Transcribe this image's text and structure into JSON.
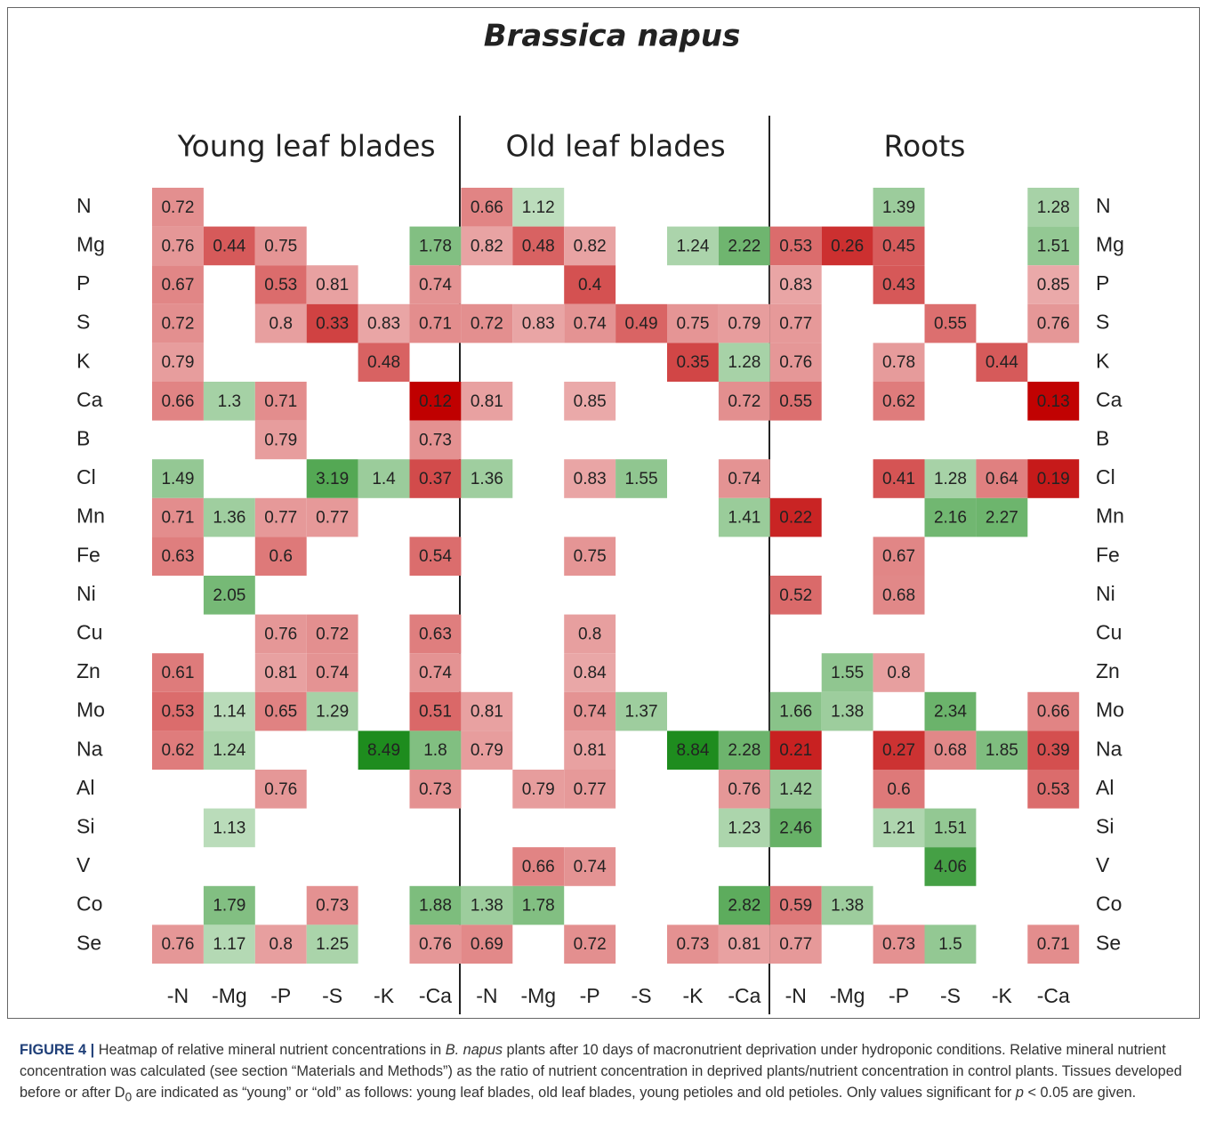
{
  "chart_data": {
    "type": "heatmap",
    "title": "Brassica napus",
    "panels": [
      "Young leaf blades",
      "Old leaf blades",
      "Roots"
    ],
    "columns": [
      "-N",
      "-Mg",
      "-P",
      "-S",
      "-K",
      "-Ca",
      "-N",
      "-Mg",
      "-P",
      "-S",
      "-K",
      "-Ca",
      "-N",
      "-Mg",
      "-P",
      "-S",
      "-K",
      "-Ca"
    ],
    "rows": [
      "N",
      "Mg",
      "P",
      "S",
      "K",
      "Ca",
      "B",
      "Cl",
      "Mn",
      "Fe",
      "Ni",
      "Cu",
      "Zn",
      "Mo",
      "Na",
      "Al",
      "Si",
      "V",
      "Co",
      "Se"
    ],
    "values": [
      [
        0.72,
        null,
        null,
        null,
        null,
        null,
        0.66,
        1.12,
        null,
        null,
        null,
        null,
        null,
        null,
        1.39,
        null,
        null,
        1.28
      ],
      [
        0.76,
        0.44,
        0.75,
        null,
        null,
        1.78,
        0.82,
        0.48,
        0.82,
        null,
        1.24,
        2.22,
        0.53,
        0.26,
        0.45,
        null,
        null,
        1.51
      ],
      [
        0.67,
        null,
        0.53,
        0.81,
        null,
        0.74,
        null,
        null,
        0.4,
        null,
        null,
        null,
        0.83,
        null,
        0.43,
        null,
        null,
        0.85
      ],
      [
        0.72,
        null,
        0.8,
        0.33,
        0.83,
        0.71,
        0.72,
        0.83,
        0.74,
        0.49,
        0.75,
        0.79,
        0.77,
        null,
        null,
        0.55,
        null,
        0.76
      ],
      [
        0.79,
        null,
        null,
        null,
        0.48,
        null,
        null,
        null,
        null,
        null,
        0.35,
        1.28,
        0.76,
        null,
        0.78,
        null,
        0.44,
        null
      ],
      [
        0.66,
        1.3,
        0.71,
        null,
        null,
        0.12,
        0.81,
        null,
        0.85,
        null,
        null,
        0.72,
        0.55,
        null,
        0.62,
        null,
        null,
        0.13
      ],
      [
        null,
        null,
        0.79,
        null,
        null,
        0.73,
        null,
        null,
        null,
        null,
        null,
        null,
        null,
        null,
        null,
        null,
        null,
        null
      ],
      [
        1.49,
        null,
        null,
        3.19,
        1.4,
        0.37,
        1.36,
        null,
        0.83,
        1.55,
        null,
        0.74,
        null,
        null,
        0.41,
        1.28,
        0.64,
        0.19
      ],
      [
        0.71,
        1.36,
        0.77,
        0.77,
        null,
        null,
        null,
        null,
        null,
        null,
        null,
        1.41,
        0.22,
        null,
        null,
        2.16,
        2.27,
        null
      ],
      [
        0.63,
        null,
        0.6,
        null,
        null,
        0.54,
        null,
        null,
        0.75,
        null,
        null,
        null,
        null,
        null,
        0.67,
        null,
        null,
        null
      ],
      [
        null,
        2.05,
        null,
        null,
        null,
        null,
        null,
        null,
        null,
        null,
        null,
        null,
        0.52,
        null,
        0.68,
        null,
        null,
        null
      ],
      [
        null,
        null,
        0.76,
        0.72,
        null,
        0.63,
        null,
        null,
        0.8,
        null,
        null,
        null,
        null,
        null,
        null,
        null,
        null,
        null
      ],
      [
        0.61,
        null,
        0.81,
        0.74,
        null,
        0.74,
        null,
        null,
        0.84,
        null,
        null,
        null,
        null,
        1.55,
        0.8,
        null,
        null,
        null
      ],
      [
        0.53,
        1.14,
        0.65,
        1.29,
        null,
        0.51,
        0.81,
        null,
        0.74,
        1.37,
        null,
        null,
        1.66,
        1.38,
        null,
        2.34,
        null,
        0.66
      ],
      [
        0.62,
        1.24,
        null,
        null,
        8.49,
        1.8,
        0.79,
        null,
        0.81,
        null,
        8.84,
        2.28,
        0.21,
        null,
        0.27,
        0.68,
        1.85,
        0.39
      ],
      [
        null,
        null,
        0.76,
        null,
        null,
        0.73,
        null,
        0.79,
        0.77,
        null,
        null,
        0.76,
        1.42,
        null,
        0.6,
        null,
        null,
        0.53
      ],
      [
        null,
        1.13,
        null,
        null,
        null,
        null,
        null,
        null,
        null,
        null,
        null,
        1.23,
        2.46,
        null,
        1.21,
        1.51,
        null,
        null
      ],
      [
        null,
        null,
        null,
        null,
        null,
        null,
        null,
        0.66,
        0.74,
        null,
        null,
        null,
        null,
        null,
        null,
        4.06,
        null,
        null
      ],
      [
        null,
        1.79,
        null,
        0.73,
        null,
        1.88,
        1.38,
        1.78,
        null,
        null,
        null,
        2.82,
        0.59,
        1.38,
        null,
        null,
        null,
        null
      ],
      [
        0.76,
        1.17,
        0.8,
        1.25,
        null,
        0.76,
        0.69,
        null,
        0.72,
        null,
        0.73,
        0.81,
        0.77,
        null,
        0.73,
        1.5,
        null,
        0.71
      ]
    ],
    "low_color": "#c00000",
    "mid_color": "#ffffff",
    "high_color": "#1e8c1e"
  },
  "caption": {
    "label": "FIGURE 4 |",
    "parts": [
      "Heatmap of relative mineral nutrient concentrations in ",
      "B. napus",
      " plants after 10 days of macronutrient deprivation under hydroponic conditions. Relative mineral nutrient concentration was calculated (see section “Materials and Methods”) as the ratio of nutrient concentration in deprived plants/nutrient concentration in control plants. Tissues developed before or after D",
      "0",
      " are indicated as “young” or “old” as follows: young leaf blades, old leaf blades, young petioles and old petioles. Only values significant for ",
      "p",
      " < 0.05 are given."
    ]
  }
}
